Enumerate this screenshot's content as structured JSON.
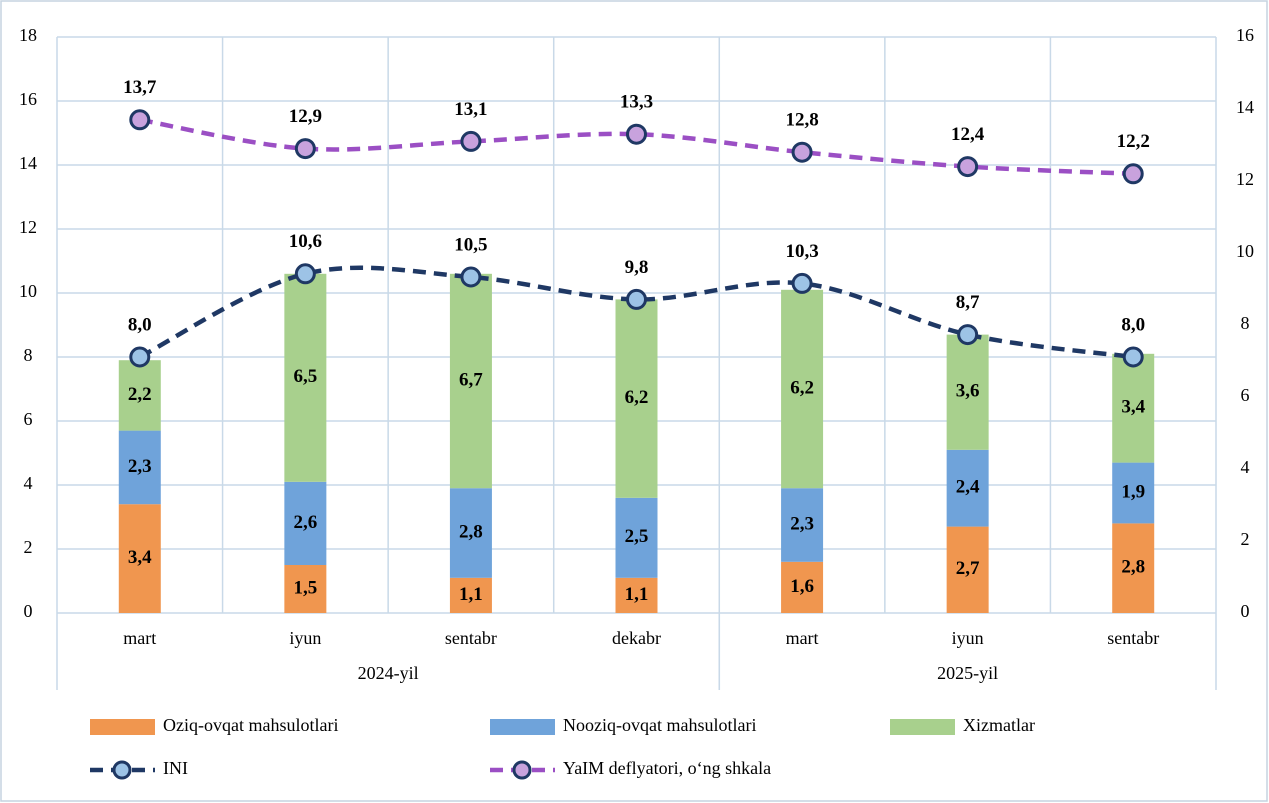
{
  "chart_data": {
    "type": "bar",
    "categories": [
      "mart",
      "iyun",
      "sentabr",
      "dekabr",
      "mart",
      "iyun",
      "sentabr"
    ],
    "category_groups": [
      "2024-yil",
      "2024-yil",
      "2024-yil",
      "2024-yil",
      "2025-yil",
      "2025-yil",
      "2025-yil"
    ],
    "series": [
      {
        "name": "Oziq-ovqat mahsulotlari",
        "type": "bar",
        "color": "#f0964f",
        "values": [
          3.4,
          1.5,
          1.1,
          1.1,
          1.6,
          2.7,
          2.8
        ],
        "value_labels": [
          "3,4",
          "1,5",
          "1,1",
          "1,1",
          "1,6",
          "2,7",
          "2,8"
        ]
      },
      {
        "name": "Nooziq-ovqat mahsulotlari",
        "type": "bar",
        "color": "#6fa3da",
        "values": [
          2.3,
          2.6,
          2.8,
          2.5,
          2.3,
          2.4,
          1.9
        ],
        "value_labels": [
          "2,3",
          "2,6",
          "2,8",
          "2,5",
          "2,3",
          "2,4",
          "1,9"
        ]
      },
      {
        "name": "Xizmatlar",
        "type": "bar",
        "color": "#a8d08d",
        "values": [
          2.2,
          6.5,
          6.7,
          6.2,
          6.2,
          3.6,
          3.4
        ],
        "value_labels": [
          "2,2",
          "6,5",
          "6,7",
          "6,2",
          "6,2",
          "3,6",
          "3,4"
        ]
      },
      {
        "name": "INI",
        "type": "line",
        "color": "#1f3864",
        "marker_color": "#9dc3e6",
        "values": [
          8.0,
          10.6,
          10.5,
          9.8,
          10.3,
          8.7,
          8.0
        ],
        "value_labels": [
          "8,0",
          "10,6",
          "10,5",
          "9,8",
          "10,3",
          "8,7",
          "8,0"
        ]
      },
      {
        "name": "YaIM deflyatori, o‘ng shkala",
        "type": "line",
        "axis": "y2",
        "color": "#9b4fc4",
        "marker_color": "#c8a2dd",
        "values": [
          13.7,
          12.9,
          13.1,
          13.3,
          12.8,
          12.4,
          12.2
        ],
        "value_labels": [
          "13,7",
          "12,9",
          "13,1",
          "13,3",
          "12,8",
          "12,4",
          "12,2"
        ]
      }
    ],
    "ylim": [
      0,
      18
    ],
    "yticks": [
      0,
      2,
      4,
      6,
      8,
      10,
      12,
      14,
      16,
      18
    ],
    "y2lim": [
      0,
      16
    ],
    "y2ticks": [
      0,
      2,
      4,
      6,
      8,
      10,
      12,
      14,
      16
    ],
    "grid": true,
    "stacked": true,
    "legend": "bottom"
  }
}
